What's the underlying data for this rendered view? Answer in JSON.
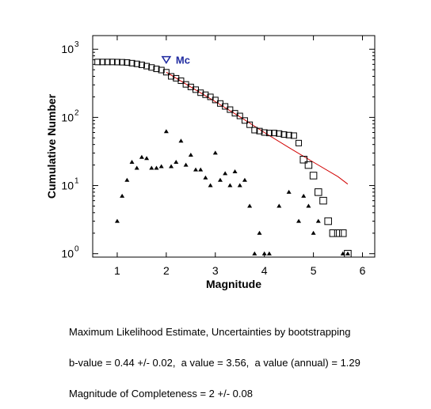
{
  "chart_data": {
    "type": "scatter",
    "xlabel": "Magnitude",
    "ylabel": "Cumulative Number",
    "xlim": [
      0.5,
      6.25
    ],
    "ylim_log10": [
      -0.05,
      3.2
    ],
    "yscale": "log",
    "x_ticks": [
      1,
      2,
      3,
      4,
      5,
      6
    ],
    "y_ticks": [
      {
        "base": "10",
        "exp": "0",
        "value": 1
      },
      {
        "base": "10",
        "exp": "1",
        "value": 10
      },
      {
        "base": "10",
        "exp": "2",
        "value": 100
      },
      {
        "base": "10",
        "exp": "3",
        "value": 1000
      }
    ],
    "series": [
      {
        "marker": "square",
        "color": "#000000",
        "points": [
          [
            0.6,
            650
          ],
          [
            0.7,
            650
          ],
          [
            0.8,
            650
          ],
          [
            0.9,
            650
          ],
          [
            1.0,
            648
          ],
          [
            1.1,
            645
          ],
          [
            1.2,
            640
          ],
          [
            1.3,
            625
          ],
          [
            1.4,
            610
          ],
          [
            1.5,
            590
          ],
          [
            1.6,
            565
          ],
          [
            1.7,
            540
          ],
          [
            1.8,
            515
          ],
          [
            1.9,
            495
          ],
          [
            2.0,
            460
          ],
          [
            2.1,
            400
          ],
          [
            2.2,
            375
          ],
          [
            2.3,
            345
          ],
          [
            2.4,
            305
          ],
          [
            2.5,
            280
          ],
          [
            2.6,
            255
          ],
          [
            2.7,
            230
          ],
          [
            2.8,
            215
          ],
          [
            2.9,
            200
          ],
          [
            3.0,
            180
          ],
          [
            3.1,
            160
          ],
          [
            3.2,
            145
          ],
          [
            3.3,
            130
          ],
          [
            3.4,
            115
          ],
          [
            3.5,
            105
          ],
          [
            3.6,
            90
          ],
          [
            3.7,
            78
          ],
          [
            3.8,
            65
          ],
          [
            3.9,
            63
          ],
          [
            4.0,
            60
          ],
          [
            4.1,
            59
          ],
          [
            4.2,
            59
          ],
          [
            4.3,
            58
          ],
          [
            4.4,
            56
          ],
          [
            4.5,
            55
          ],
          [
            4.6,
            54
          ],
          [
            4.7,
            42
          ],
          [
            4.8,
            24
          ],
          [
            4.9,
            20
          ],
          [
            5.0,
            14
          ],
          [
            5.1,
            8
          ],
          [
            5.2,
            6
          ],
          [
            5.3,
            3
          ],
          [
            5.4,
            2
          ],
          [
            5.5,
            2
          ],
          [
            5.6,
            2
          ],
          [
            5.7,
            1
          ]
        ]
      },
      {
        "marker": "triangle",
        "color": "#000000",
        "points": [
          [
            1.0,
            3
          ],
          [
            1.1,
            7
          ],
          [
            1.2,
            12
          ],
          [
            1.3,
            22
          ],
          [
            1.4,
            18
          ],
          [
            1.5,
            26
          ],
          [
            1.6,
            25
          ],
          [
            1.7,
            18
          ],
          [
            1.8,
            18
          ],
          [
            1.9,
            19
          ],
          [
            2.0,
            62
          ],
          [
            2.1,
            19
          ],
          [
            2.2,
            22
          ],
          [
            2.3,
            45
          ],
          [
            2.4,
            20
          ],
          [
            2.5,
            28
          ],
          [
            2.6,
            17
          ],
          [
            2.7,
            17
          ],
          [
            2.8,
            13
          ],
          [
            2.9,
            10
          ],
          [
            3.0,
            30
          ],
          [
            3.1,
            12
          ],
          [
            3.2,
            15
          ],
          [
            3.3,
            10
          ],
          [
            3.4,
            16
          ],
          [
            3.5,
            10
          ],
          [
            3.6,
            12
          ],
          [
            3.7,
            5
          ],
          [
            3.8,
            1
          ],
          [
            3.9,
            2
          ],
          [
            4.0,
            1
          ],
          [
            4.1,
            1
          ],
          [
            4.3,
            5
          ],
          [
            4.5,
            8
          ],
          [
            4.7,
            3
          ],
          [
            4.8,
            7
          ],
          [
            4.9,
            5
          ],
          [
            5.0,
            2
          ],
          [
            5.1,
            3
          ],
          [
            5.6,
            1
          ],
          [
            5.7,
            1
          ]
        ]
      },
      {
        "type": "line",
        "color": "#d10000",
        "points": [
          [
            2.0,
            460
          ],
          [
            2.5,
            280
          ],
          [
            3.0,
            170
          ],
          [
            3.5,
            102
          ],
          [
            4.0,
            60
          ],
          [
            4.5,
            36
          ],
          [
            5.0,
            22
          ],
          [
            5.5,
            13.5
          ],
          [
            5.7,
            10.5
          ]
        ]
      }
    ],
    "annotation": {
      "label": "Mc",
      "marker": "inverted-triangle",
      "color": "#1f2aa0",
      "x": 2.0,
      "y": 700
    }
  },
  "caption": {
    "line1": "Maximum Likelihood Estimate, Uncertainties by bootstrapping",
    "line2": "b-value = 0.44 +/- 0.02,  a value = 3.56,  a value (annual) = 1.29",
    "line3": "Magnitude of Completeness = 2 +/- 0.08"
  }
}
